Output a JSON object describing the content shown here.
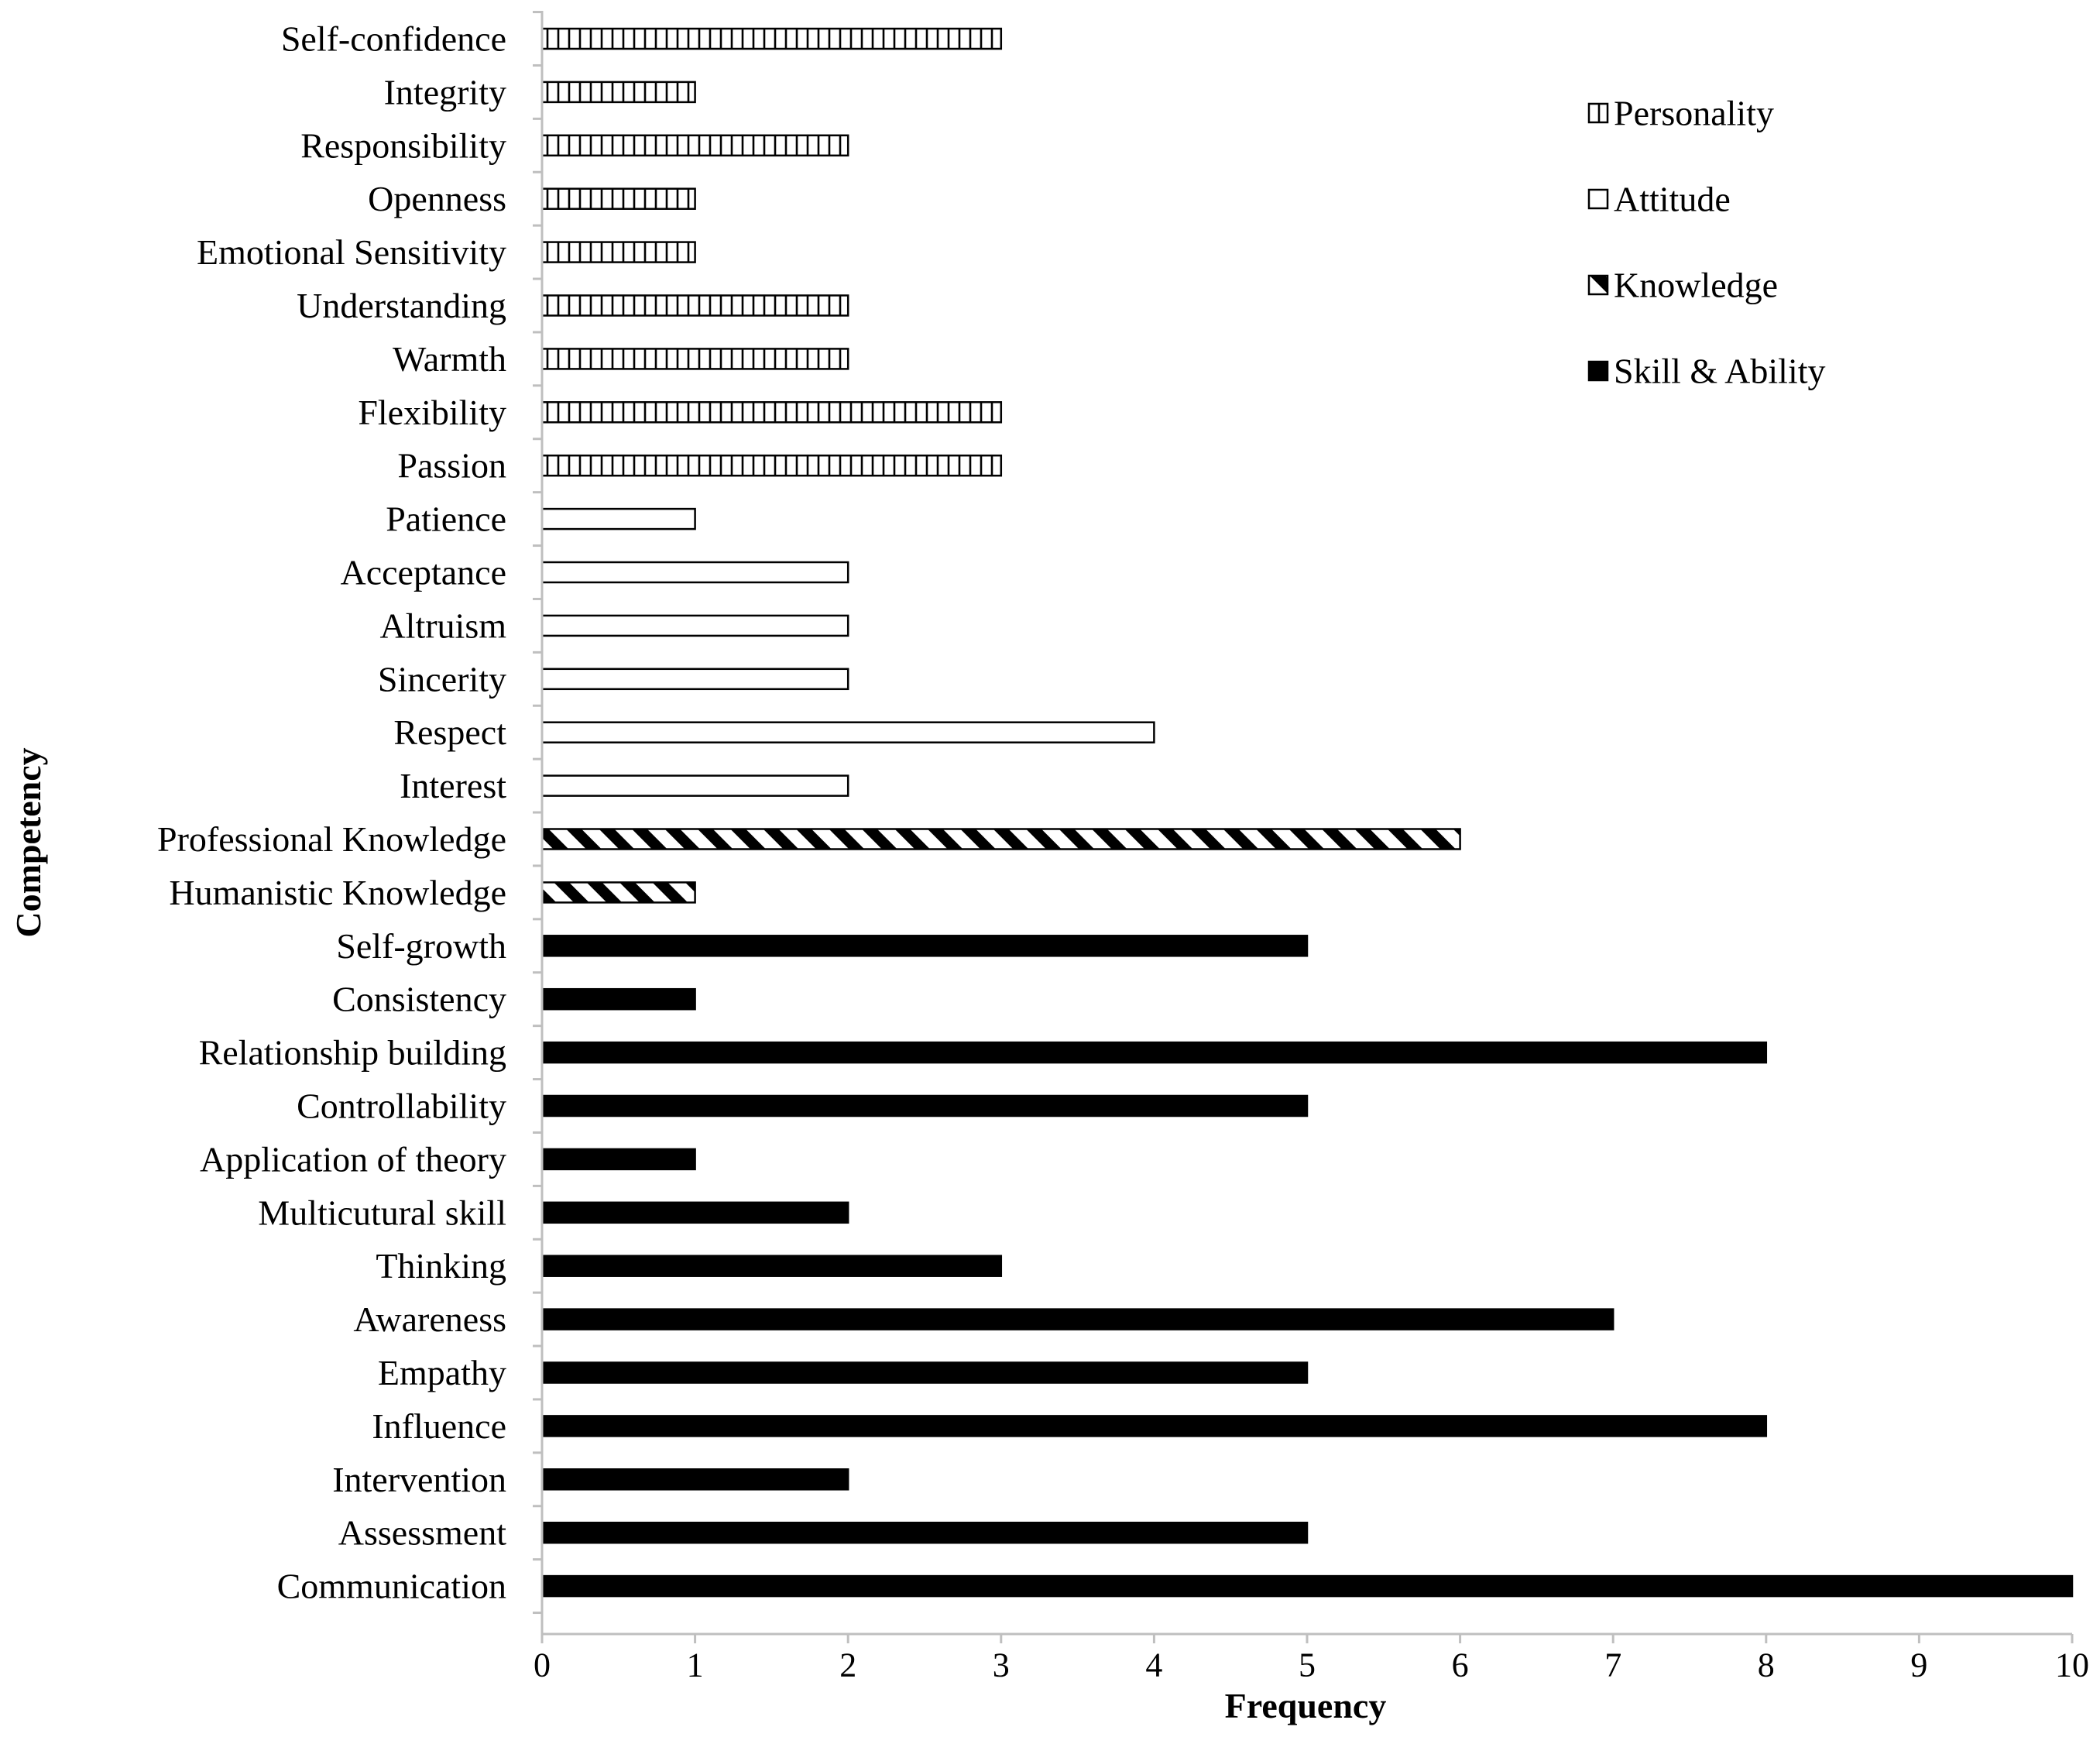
{
  "chart_data": {
    "type": "bar",
    "orientation": "horizontal",
    "title": "",
    "xlabel": "Frequency",
    "ylabel": "Competency",
    "xlim": [
      0,
      10
    ],
    "xticks": [
      0,
      1,
      2,
      3,
      4,
      5,
      6,
      7,
      8,
      9,
      10
    ],
    "grid": false,
    "legend_position": "top-right",
    "legend": [
      {
        "name": "Personality",
        "pattern": "vertical-stripes"
      },
      {
        "name": "Attitude",
        "pattern": "hollow"
      },
      {
        "name": "Knowledge",
        "pattern": "diagonal-hatch"
      },
      {
        "name": "Skill & Ability",
        "pattern": "solid"
      }
    ],
    "categories": [
      {
        "label": "Self-confidence",
        "value": 3,
        "series": "Personality"
      },
      {
        "label": "Integrity",
        "value": 1,
        "series": "Personality"
      },
      {
        "label": "Responsibility",
        "value": 2,
        "series": "Personality"
      },
      {
        "label": "Openness",
        "value": 1,
        "series": "Personality"
      },
      {
        "label": "Emotional Sensitivity",
        "value": 1,
        "series": "Personality"
      },
      {
        "label": "Understanding",
        "value": 2,
        "series": "Personality"
      },
      {
        "label": "Warmth",
        "value": 2,
        "series": "Personality"
      },
      {
        "label": "Flexibility",
        "value": 3,
        "series": "Personality"
      },
      {
        "label": "Passion",
        "value": 3,
        "series": "Personality"
      },
      {
        "label": "Patience",
        "value": 1,
        "series": "Attitude"
      },
      {
        "label": "Acceptance",
        "value": 2,
        "series": "Attitude"
      },
      {
        "label": "Altruism",
        "value": 2,
        "series": "Attitude"
      },
      {
        "label": "Sincerity",
        "value": 2,
        "series": "Attitude"
      },
      {
        "label": "Respect",
        "value": 4,
        "series": "Attitude"
      },
      {
        "label": "Interest",
        "value": 2,
        "series": "Attitude"
      },
      {
        "label": "Professional Knowledge",
        "value": 6,
        "series": "Knowledge"
      },
      {
        "label": "Humanistic Knowledge",
        "value": 1,
        "series": "Knowledge"
      },
      {
        "label": "Self-growth",
        "value": 5,
        "series": "Skill & Ability"
      },
      {
        "label": "Consistency",
        "value": 1,
        "series": "Skill & Ability"
      },
      {
        "label": "Relationship building",
        "value": 8,
        "series": "Skill & Ability"
      },
      {
        "label": "Controllability",
        "value": 5,
        "series": "Skill & Ability"
      },
      {
        "label": "Application of theory",
        "value": 1,
        "series": "Skill & Ability"
      },
      {
        "label": "Multicutural skill",
        "value": 2,
        "series": "Skill & Ability"
      },
      {
        "label": "Thinking",
        "value": 3,
        "series": "Skill & Ability"
      },
      {
        "label": "Awareness",
        "value": 7,
        "series": "Skill & Ability"
      },
      {
        "label": "Empathy",
        "value": 5,
        "series": "Skill & Ability"
      },
      {
        "label": "Influence",
        "value": 8,
        "series": "Skill & Ability"
      },
      {
        "label": "Intervention",
        "value": 2,
        "series": "Skill & Ability"
      },
      {
        "label": "Assessment",
        "value": 5,
        "series": "Skill & Ability"
      },
      {
        "label": "Communication",
        "value": 10,
        "series": "Skill & Ability"
      }
    ]
  }
}
